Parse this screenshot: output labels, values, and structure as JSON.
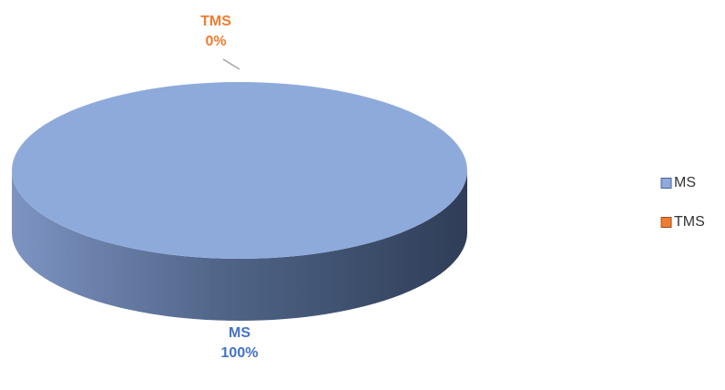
{
  "chart_data": {
    "type": "pie",
    "categories": [
      "MS",
      "TMS"
    ],
    "values": [
      100,
      0
    ],
    "value_labels": [
      "100%",
      "0%"
    ],
    "colors": [
      "#8eaadb",
      "#ed7d31"
    ],
    "label_colors": [
      "#4472c4",
      "#ed7d31"
    ],
    "legend": "right",
    "three_d": true
  }
}
